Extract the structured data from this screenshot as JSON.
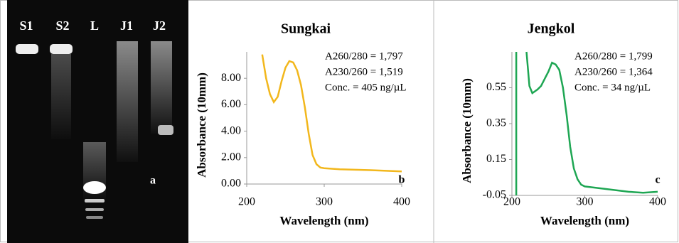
{
  "gel": {
    "lanes": [
      "S1",
      "S2",
      "L",
      "J1",
      "J2"
    ],
    "panel_label": "a"
  },
  "chart_data": [
    {
      "type": "line",
      "title": "Sungkai",
      "x_label": "Wavelength (nm)",
      "y_label": "Absorbance (10mm)",
      "annotations": [
        "A260/280 = 1,797",
        "A230/260 = 1,519",
        "Conc. = 405 ng/µL"
      ],
      "panel_label": "b",
      "xlim": [
        200,
        400
      ],
      "xticks": [
        200,
        300,
        400
      ],
      "ylim": [
        0,
        10
      ],
      "yticks": [
        {
          "value": 0,
          "label": "0.00"
        },
        {
          "value": 2,
          "label": "2.00"
        },
        {
          "value": 4,
          "label": "4.00"
        },
        {
          "value": 6,
          "label": "6.00"
        },
        {
          "value": 8,
          "label": "8.00"
        }
      ],
      "series": [
        {
          "name": "Sungkai",
          "color": "#f2b71c",
          "x": [
            220,
            225,
            230,
            235,
            240,
            245,
            250,
            255,
            260,
            265,
            270,
            275,
            280,
            285,
            290,
            295,
            300,
            320,
            340,
            360,
            380,
            400
          ],
          "values": [
            9.8,
            8.0,
            6.8,
            6.2,
            6.6,
            7.8,
            8.8,
            9.3,
            9.2,
            8.6,
            7.5,
            5.8,
            3.8,
            2.2,
            1.5,
            1.25,
            1.2,
            1.12,
            1.08,
            1.05,
            1.0,
            0.95
          ]
        }
      ]
    },
    {
      "type": "line",
      "title": "Jengkol",
      "x_label": "Wavelength (nm)",
      "y_label": "Absorbance (10mm)",
      "annotations": [
        "A260/280 = 1,799",
        "A230/260 = 1,364",
        "Conc. = 34 ng/µL"
      ],
      "panel_label": "c",
      "xlim": [
        200,
        400
      ],
      "xticks": [
        200,
        300,
        400
      ],
      "ylim": [
        -0.05,
        0.75
      ],
      "yticks": [
        -0.05,
        0.15,
        0.35,
        0.55
      ],
      "series": [
        {
          "name": "Jengkol",
          "color": "#1ea653",
          "x": [
            206,
            206,
            212,
            220,
            224,
            228,
            235,
            240,
            245,
            250,
            255,
            260,
            265,
            270,
            275,
            280,
            285,
            290,
            295,
            300,
            320,
            340,
            360,
            380,
            400
          ],
          "values": [
            0.75,
            -0.05,
            null,
            0.75,
            0.56,
            0.52,
            0.54,
            0.56,
            0.6,
            0.64,
            0.69,
            0.68,
            0.65,
            0.55,
            0.4,
            0.22,
            0.1,
            0.04,
            0.01,
            0.0,
            -0.01,
            -0.02,
            -0.03,
            -0.035,
            -0.03
          ]
        }
      ]
    }
  ]
}
